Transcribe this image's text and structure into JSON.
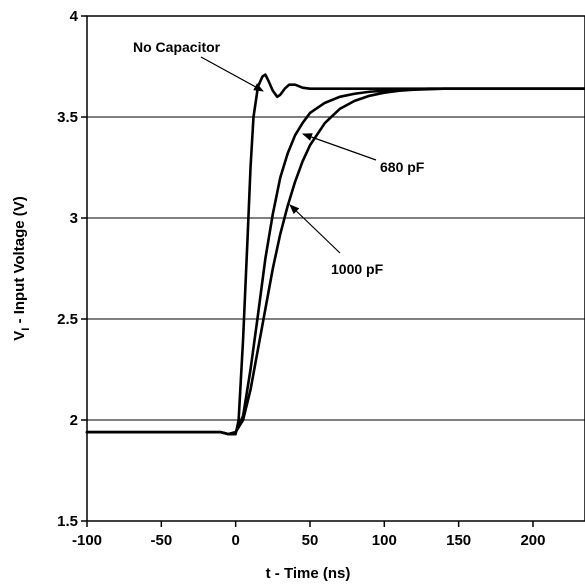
{
  "chart_data": {
    "type": "line",
    "xlabel": "t - Time (ns)",
    "ylabel_main": "V",
    "ylabel_sub": "I",
    "ylabel_rest": " - Input Voltage (V)",
    "xlim": [
      -100,
      235
    ],
    "ylim": [
      1.5,
      4
    ],
    "grid": "horizontal",
    "x_ticks": [
      {
        "value": -100,
        "label": "-100"
      },
      {
        "value": -50,
        "label": "-50"
      },
      {
        "value": 0,
        "label": "0"
      },
      {
        "value": 50,
        "label": "50"
      },
      {
        "value": 100,
        "label": "100"
      },
      {
        "value": 150,
        "label": "150"
      },
      {
        "value": 200,
        "label": "200"
      }
    ],
    "y_ticks": [
      {
        "value": 1.5,
        "label": "1.5"
      },
      {
        "value": 2,
        "label": "2"
      },
      {
        "value": 2.5,
        "label": "2.5"
      },
      {
        "value": 3,
        "label": "3"
      },
      {
        "value": 3.5,
        "label": "3.5"
      },
      {
        "value": 4,
        "label": "4"
      }
    ],
    "series": [
      {
        "name": "No Capacitor",
        "x": [
          -100,
          -10,
          -5,
          0,
          2,
          5,
          8,
          10,
          12,
          15,
          18,
          20,
          22,
          25,
          28,
          30,
          33,
          36,
          40,
          45,
          50,
          60,
          235
        ],
        "y": [
          1.94,
          1.94,
          1.93,
          1.93,
          2.0,
          2.4,
          2.9,
          3.25,
          3.5,
          3.65,
          3.7,
          3.71,
          3.68,
          3.63,
          3.6,
          3.61,
          3.64,
          3.66,
          3.66,
          3.645,
          3.64,
          3.64,
          3.64
        ]
      },
      {
        "name": "680 pF",
        "x": [
          -100,
          -10,
          -5,
          0,
          5,
          10,
          15,
          20,
          25,
          30,
          35,
          40,
          45,
          50,
          60,
          70,
          80,
          90,
          100,
          110,
          130,
          235
        ],
        "y": [
          1.94,
          1.94,
          1.93,
          1.94,
          2.02,
          2.25,
          2.52,
          2.8,
          3.02,
          3.2,
          3.32,
          3.41,
          3.47,
          3.52,
          3.57,
          3.6,
          3.615,
          3.625,
          3.63,
          3.635,
          3.64,
          3.64
        ]
      },
      {
        "name": "1000 pF",
        "x": [
          -100,
          -10,
          -5,
          0,
          5,
          10,
          15,
          20,
          25,
          30,
          35,
          40,
          45,
          50,
          60,
          70,
          80,
          90,
          100,
          110,
          120,
          140,
          235
        ],
        "y": [
          1.94,
          1.94,
          1.93,
          1.94,
          2.0,
          2.15,
          2.35,
          2.55,
          2.75,
          2.92,
          3.06,
          3.18,
          3.28,
          3.36,
          3.47,
          3.54,
          3.58,
          3.605,
          3.62,
          3.63,
          3.635,
          3.64,
          3.64
        ]
      }
    ],
    "annotations": [
      {
        "text": "No Capacitor",
        "series": "No Capacitor"
      },
      {
        "text": "680 pF",
        "series": "680 pF"
      },
      {
        "text": "1000 pF",
        "series": "1000 pF"
      }
    ]
  }
}
